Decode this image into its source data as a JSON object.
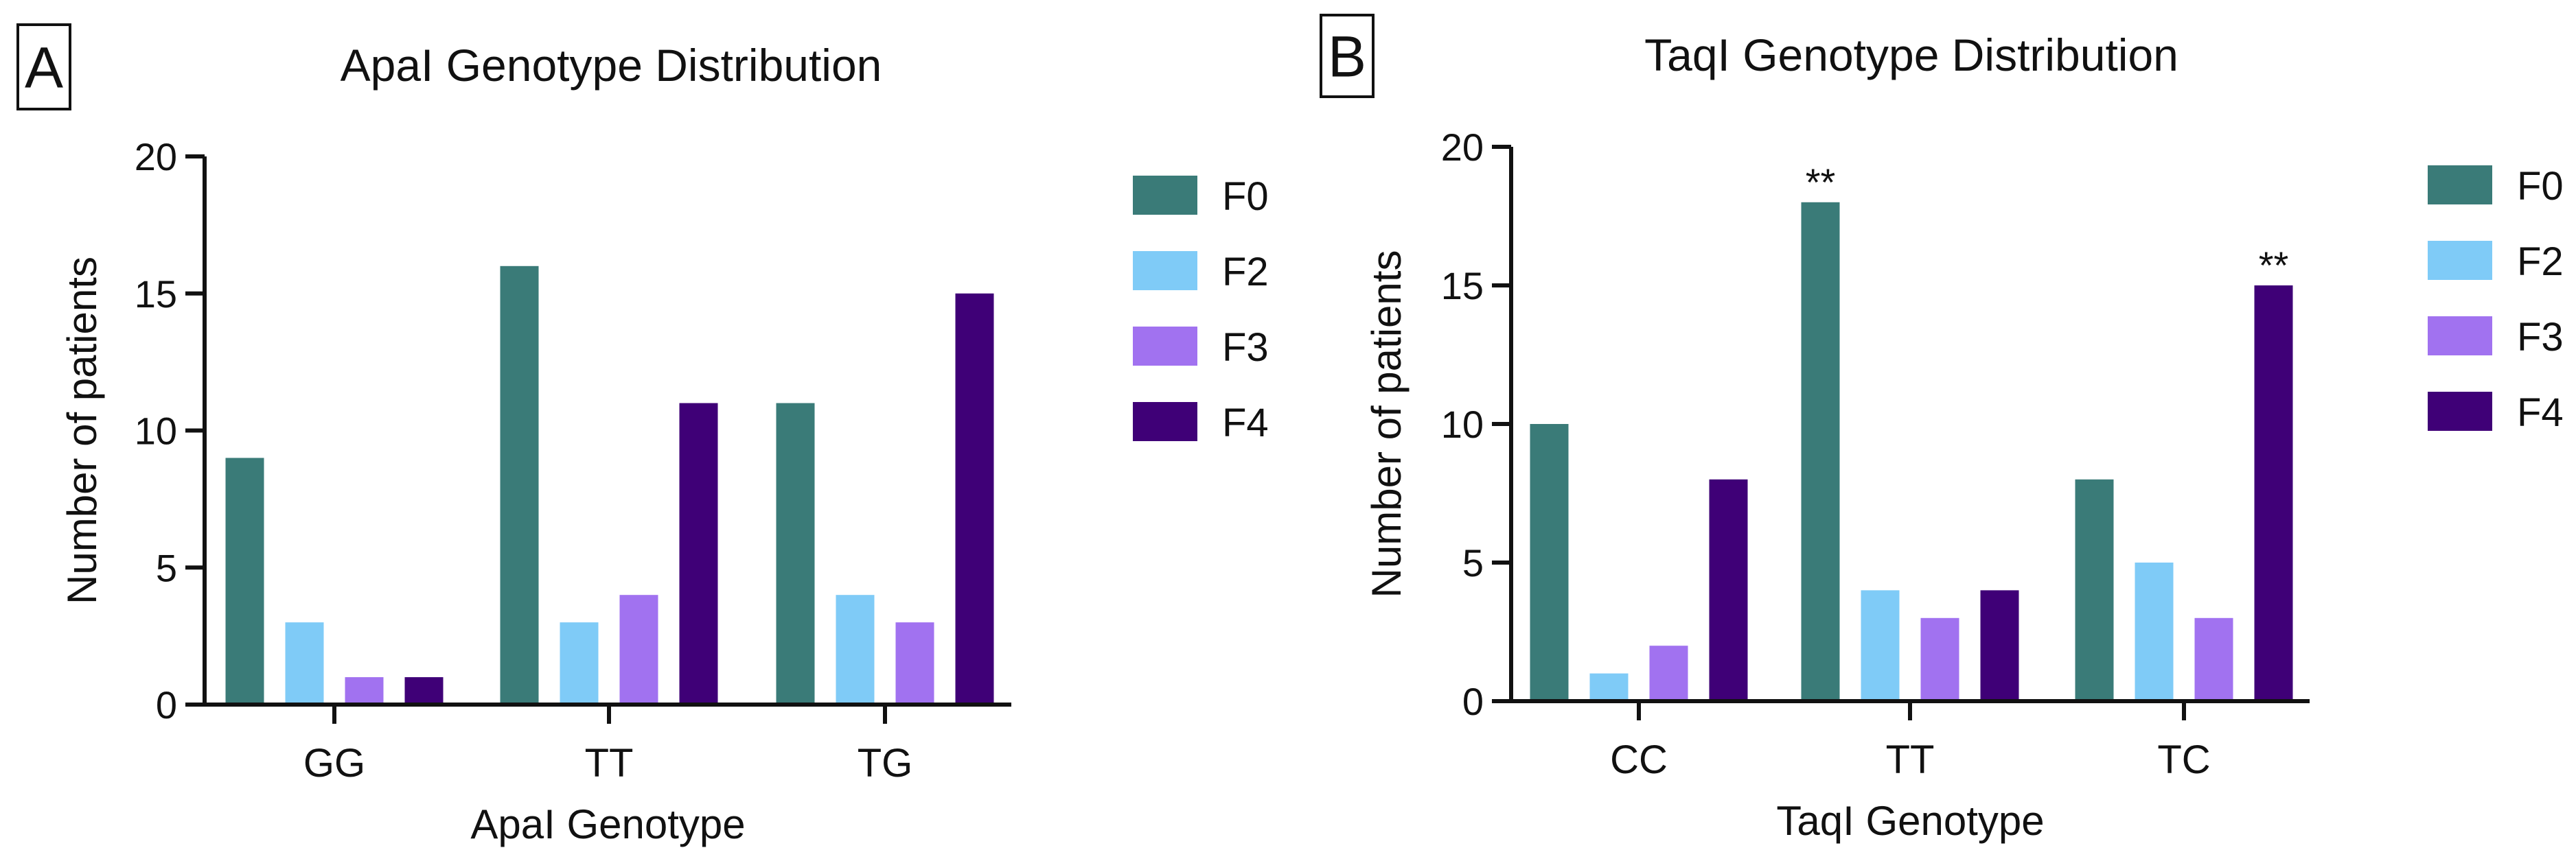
{
  "colors": {
    "F0": "#3a7b78",
    "F2": "#7fcbf7",
    "F3": "#a172f0",
    "F4": "#3f0077"
  },
  "chart_data": [
    {
      "type": "bar",
      "panel_label": "A",
      "title": "ApaI Genotype Distribution",
      "xlabel": "ApaI Genotype",
      "ylabel": "Number of patients",
      "ylim": [
        0,
        20
      ],
      "yticks": [
        "0",
        "5",
        "10",
        "15",
        "20"
      ],
      "categories": [
        "GG",
        "TT",
        "TG"
      ],
      "legend_placement": "right",
      "series": [
        {
          "name": "F0",
          "values": [
            9,
            16,
            11
          ]
        },
        {
          "name": "F2",
          "values": [
            3,
            3,
            4
          ]
        },
        {
          "name": "F3",
          "values": [
            1,
            4,
            3
          ]
        },
        {
          "name": "F4",
          "values": [
            1,
            11,
            15
          ]
        }
      ],
      "annotations": []
    },
    {
      "type": "bar",
      "panel_label": "B",
      "title": "TaqI Genotype Distribution",
      "xlabel": "TaqI Genotype",
      "ylabel": "Number of patients",
      "ylim": [
        0,
        20
      ],
      "yticks": [
        "0",
        "5",
        "10",
        "15",
        "20"
      ],
      "categories": [
        "CC",
        "TT",
        "TC"
      ],
      "legend_placement": "right",
      "series": [
        {
          "name": "F0",
          "values": [
            10,
            18,
            8
          ]
        },
        {
          "name": "F2",
          "values": [
            1,
            4,
            5
          ]
        },
        {
          "name": "F3",
          "values": [
            2,
            3,
            3
          ]
        },
        {
          "name": "F4",
          "values": [
            8,
            4,
            15
          ]
        }
      ],
      "annotations": [
        {
          "text": "**",
          "category": "TT",
          "series": "F0"
        },
        {
          "text": "**",
          "category": "TC",
          "series": "F4"
        }
      ]
    }
  ]
}
